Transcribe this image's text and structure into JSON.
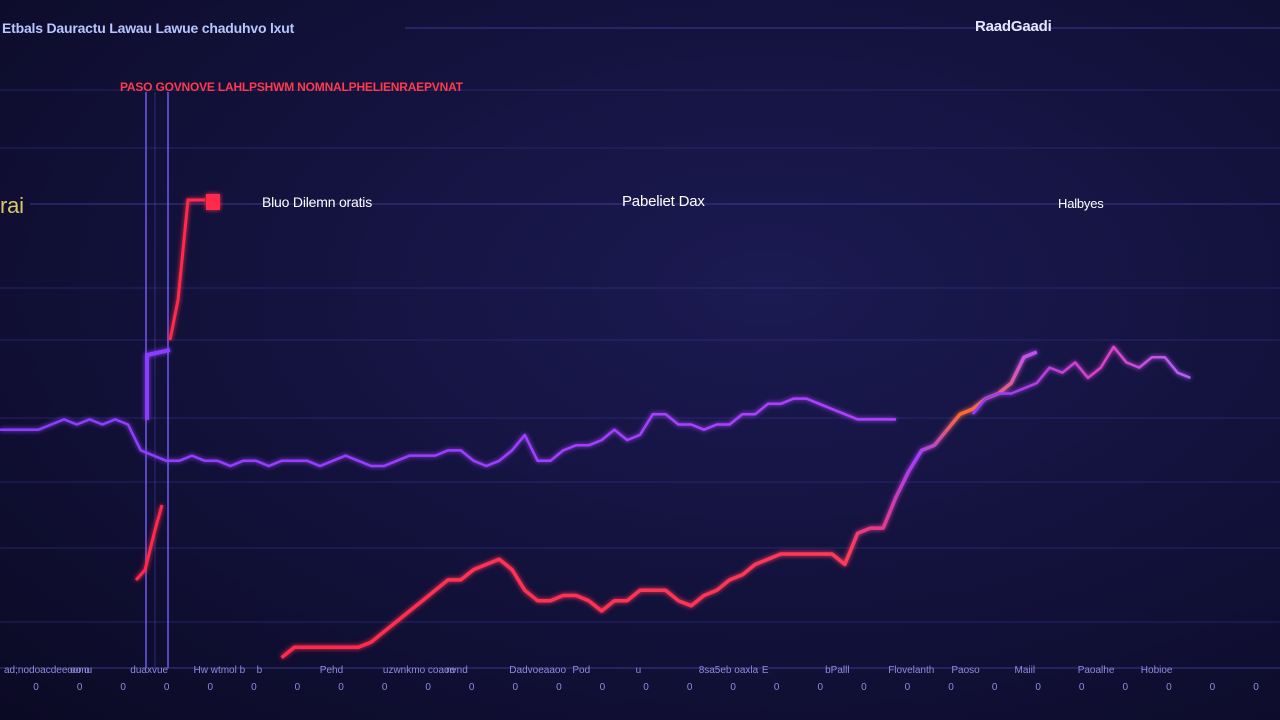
{
  "header": {
    "title": "Etbals Dauractu Lawau  Lawue chaduhvo lxut",
    "right_label": "RaadGaadi"
  },
  "caption_red": "PASO GOVNOVE LAHLPSHWM NOMNALPHELIENRAEPVNAT",
  "row_labels": {
    "left": "rai",
    "a": "Bluo Dilemn oratis",
    "b": "Pabeliet Dax",
    "c": "Halbyes"
  },
  "colors": {
    "background": "#12113a",
    "series_purple": "#8a3cff",
    "series_red": "#ff2a4a",
    "series_orange": "#ff7a2a",
    "series_magenta": "#d33cff"
  },
  "chart_data": {
    "type": "line",
    "title": "",
    "xlabel": "",
    "ylabel": "",
    "grid": true,
    "xlim": [
      0,
      100
    ],
    "ylim": [
      0,
      100
    ],
    "series": [
      {
        "values_x": [
          0,
          3,
          5,
          6,
          7,
          8,
          9,
          10,
          11,
          12,
          13,
          14,
          15,
          16,
          17,
          18,
          19,
          20,
          21,
          22,
          23,
          24,
          25,
          26,
          27,
          28,
          29,
          30,
          31,
          32,
          33,
          34,
          35,
          36,
          37,
          38,
          39,
          40,
          41,
          42,
          43,
          44,
          45,
          46,
          47,
          48,
          49,
          50,
          51,
          52,
          53,
          54,
          55,
          56,
          57,
          58,
          59,
          60,
          61,
          62,
          63,
          64,
          65,
          66,
          67,
          68,
          69,
          70
        ],
        "values": [
          46,
          46,
          48,
          47,
          48,
          47,
          48,
          47,
          42,
          41,
          40,
          40,
          41,
          40,
          40,
          39,
          40,
          40,
          39,
          40,
          40,
          40,
          39,
          40,
          41,
          40,
          39,
          39,
          40,
          41,
          41,
          41,
          42,
          42,
          40,
          39,
          40,
          42,
          45,
          40,
          40,
          42,
          43,
          43,
          44,
          46,
          44,
          45,
          49,
          49,
          47,
          47,
          46,
          47,
          47,
          49,
          49,
          51,
          51,
          52,
          52,
          51,
          50,
          49,
          48,
          48,
          48,
          48
        ]
      },
      {
        "values_x": [
          22,
          23,
          24,
          25,
          26,
          27,
          28,
          29,
          30,
          31,
          32,
          33,
          34,
          35,
          36,
          37,
          38,
          39,
          40,
          41,
          42,
          43,
          44,
          45,
          46,
          47,
          48,
          49,
          50,
          51,
          52,
          53,
          54,
          55,
          56,
          57,
          58,
          59,
          60,
          61,
          62,
          63,
          64,
          65,
          66,
          67,
          68,
          69,
          70,
          71,
          72,
          73,
          74,
          75,
          76,
          77,
          78,
          79,
          80,
          81
        ],
        "values": [
          2,
          4,
          4,
          4,
          4,
          4,
          4,
          5,
          7,
          9,
          11,
          13,
          15,
          17,
          17,
          19,
          20,
          21,
          19,
          15,
          13,
          13,
          14,
          14,
          13,
          11,
          13,
          13,
          15,
          15,
          15,
          13,
          12,
          14,
          15,
          17,
          18,
          20,
          21,
          22,
          22,
          22,
          22,
          22,
          20,
          26,
          27,
          27,
          33,
          38,
          42,
          43,
          46,
          49,
          50,
          52,
          53,
          55,
          60,
          61
        ]
      },
      {
        "values_x": [
          76,
          77,
          78,
          79,
          80,
          81,
          82,
          83,
          84,
          85,
          86,
          87,
          88,
          89,
          90,
          91,
          92,
          93
        ],
        "values": [
          49,
          52,
          53,
          53,
          54,
          55,
          58,
          57,
          59,
          56,
          58,
          62,
          59,
          58,
          60,
          60,
          57,
          56
        ]
      }
    ]
  },
  "bottom_ticks": [
    "0",
    "0",
    "0",
    "0",
    "0",
    "0",
    "0",
    "0",
    "0",
    "0",
    "0",
    "0",
    "0",
    "0",
    "0",
    "0",
    "0",
    "0",
    "0",
    "0",
    "0",
    "0",
    "0",
    "0",
    "0",
    "0",
    "0",
    "0",
    "0"
  ],
  "bottom_labels": [
    "ad;nodoacdee oo o",
    "oomu",
    "duaxvue",
    "Hw wtmol b",
    "b",
    "Pehd",
    "uzwnkmo coaoe",
    "nvnd",
    "Dadvoeaaoo",
    "Pod",
    "u",
    "8sa5eb oaxla",
    "E",
    "bPalll",
    "Flovelanth",
    "Paoso",
    "Maiil",
    "Paoalhe",
    "Hobioe"
  ]
}
